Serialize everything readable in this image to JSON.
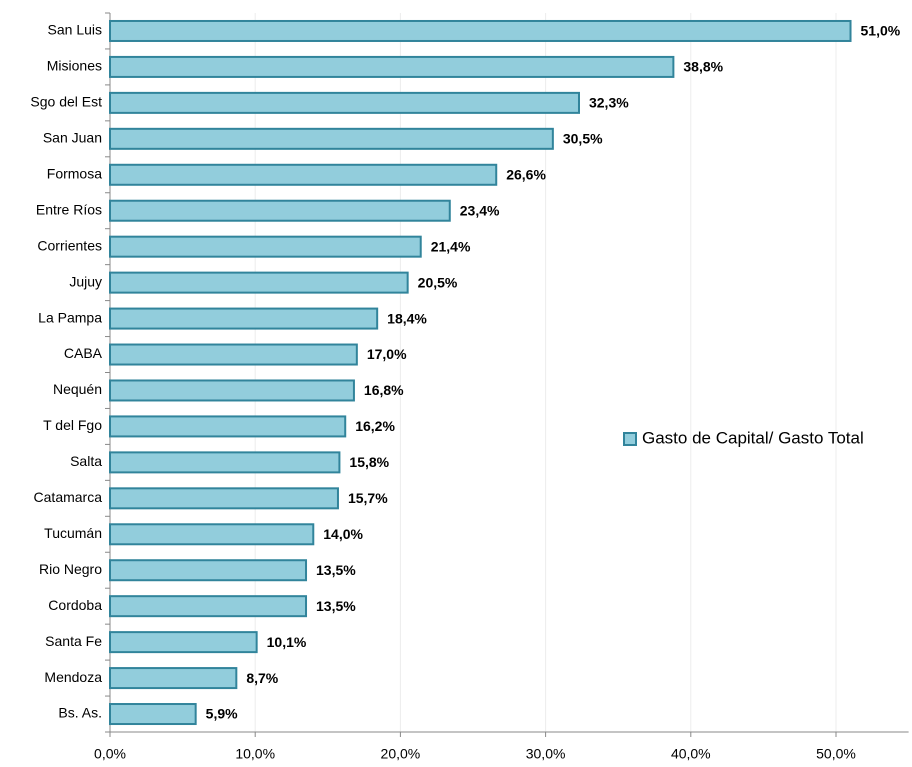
{
  "chart_data": {
    "type": "barh",
    "categories": [
      "San Luis",
      "Misiones",
      "Sgo del Est",
      "San Juan",
      "Formosa",
      "Entre Ríos",
      "Corrientes",
      "Jujuy",
      "La Pampa",
      "CABA",
      "Nequén",
      "T del Fgo",
      "Salta",
      "Catamarca",
      "Tucumán",
      "Rio Negro",
      "Cordoba",
      "Santa Fe",
      "Mendoza",
      "Bs. As."
    ],
    "series": [
      {
        "name": "Gasto de Capital/ Gasto Total",
        "color": "#92cddc",
        "edge_color": "#31849b",
        "values": [
          51.0,
          38.8,
          32.3,
          30.5,
          26.6,
          23.4,
          21.4,
          20.5,
          18.4,
          17.0,
          16.8,
          16.2,
          15.8,
          15.7,
          14.0,
          13.5,
          13.5,
          10.1,
          8.7,
          5.9
        ],
        "value_labels": [
          "51,0%",
          "38,8%",
          "32,3%",
          "30,5%",
          "26,6%",
          "23,4%",
          "21,4%",
          "20,5%",
          "18,4%",
          "17,0%",
          "16,8%",
          "16,2%",
          "15,8%",
          "15,7%",
          "14,0%",
          "13,5%",
          "13,5%",
          "10,1%",
          "8,7%",
          "5,9%"
        ]
      }
    ],
    "xlim": [
      0,
      55
    ],
    "xticks": [
      {
        "value": 0,
        "label": "0,0%"
      },
      {
        "value": 10,
        "label": "10,0%"
      },
      {
        "value": 20,
        "label": "20,0%"
      },
      {
        "value": 30,
        "label": "30,0%"
      },
      {
        "value": 40,
        "label": "40,0%"
      },
      {
        "value": 50,
        "label": "50,0%"
      }
    ],
    "grid": true,
    "legend": "right"
  }
}
